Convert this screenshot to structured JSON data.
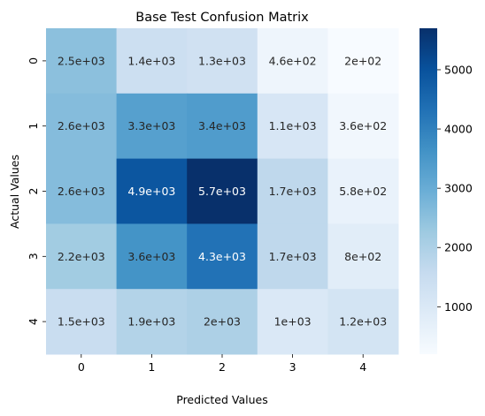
{
  "chart_data": {
    "type": "heatmap",
    "title": "Base Test Confusion Matrix",
    "xlabel": "Predicted Values",
    "ylabel": "Actual Values",
    "x_categories": [
      "0",
      "1",
      "2",
      "3",
      "4"
    ],
    "y_categories": [
      "0",
      "1",
      "2",
      "3",
      "4"
    ],
    "values": [
      [
        2500,
        1400,
        1300,
        460,
        200
      ],
      [
        2600,
        3300,
        3400,
        1100,
        360
      ],
      [
        2600,
        4900,
        5700,
        1700,
        580
      ],
      [
        2200,
        3600,
        4300,
        1700,
        800
      ],
      [
        1500,
        1900,
        2000,
        1000,
        1200
      ]
    ],
    "annotations": [
      [
        "2.5e+03",
        "1.4e+03",
        "1.3e+03",
        "4.6e+02",
        "2e+02"
      ],
      [
        "2.6e+03",
        "3.3e+03",
        "3.4e+03",
        "1.1e+03",
        "3.6e+02"
      ],
      [
        "2.6e+03",
        "4.9e+03",
        "5.7e+03",
        "1.7e+03",
        "5.8e+02"
      ],
      [
        "2.2e+03",
        "3.6e+03",
        "4.3e+03",
        "1.7e+03",
        "8e+02"
      ],
      [
        "1.5e+03",
        "1.9e+03",
        "2e+03",
        "1e+03",
        "1.2e+03"
      ]
    ],
    "colorbar": {
      "min": 200,
      "max": 5700,
      "ticks": [
        1000,
        2000,
        3000,
        4000,
        5000
      ],
      "tick_labels": [
        "1000",
        "2000",
        "3000",
        "4000",
        "5000"
      ]
    },
    "colormap": "Blues",
    "colors": {
      "low": "#f7fbff",
      "high": "#08306b",
      "text_light": "#ffffff",
      "text_dark": "#262626"
    }
  }
}
